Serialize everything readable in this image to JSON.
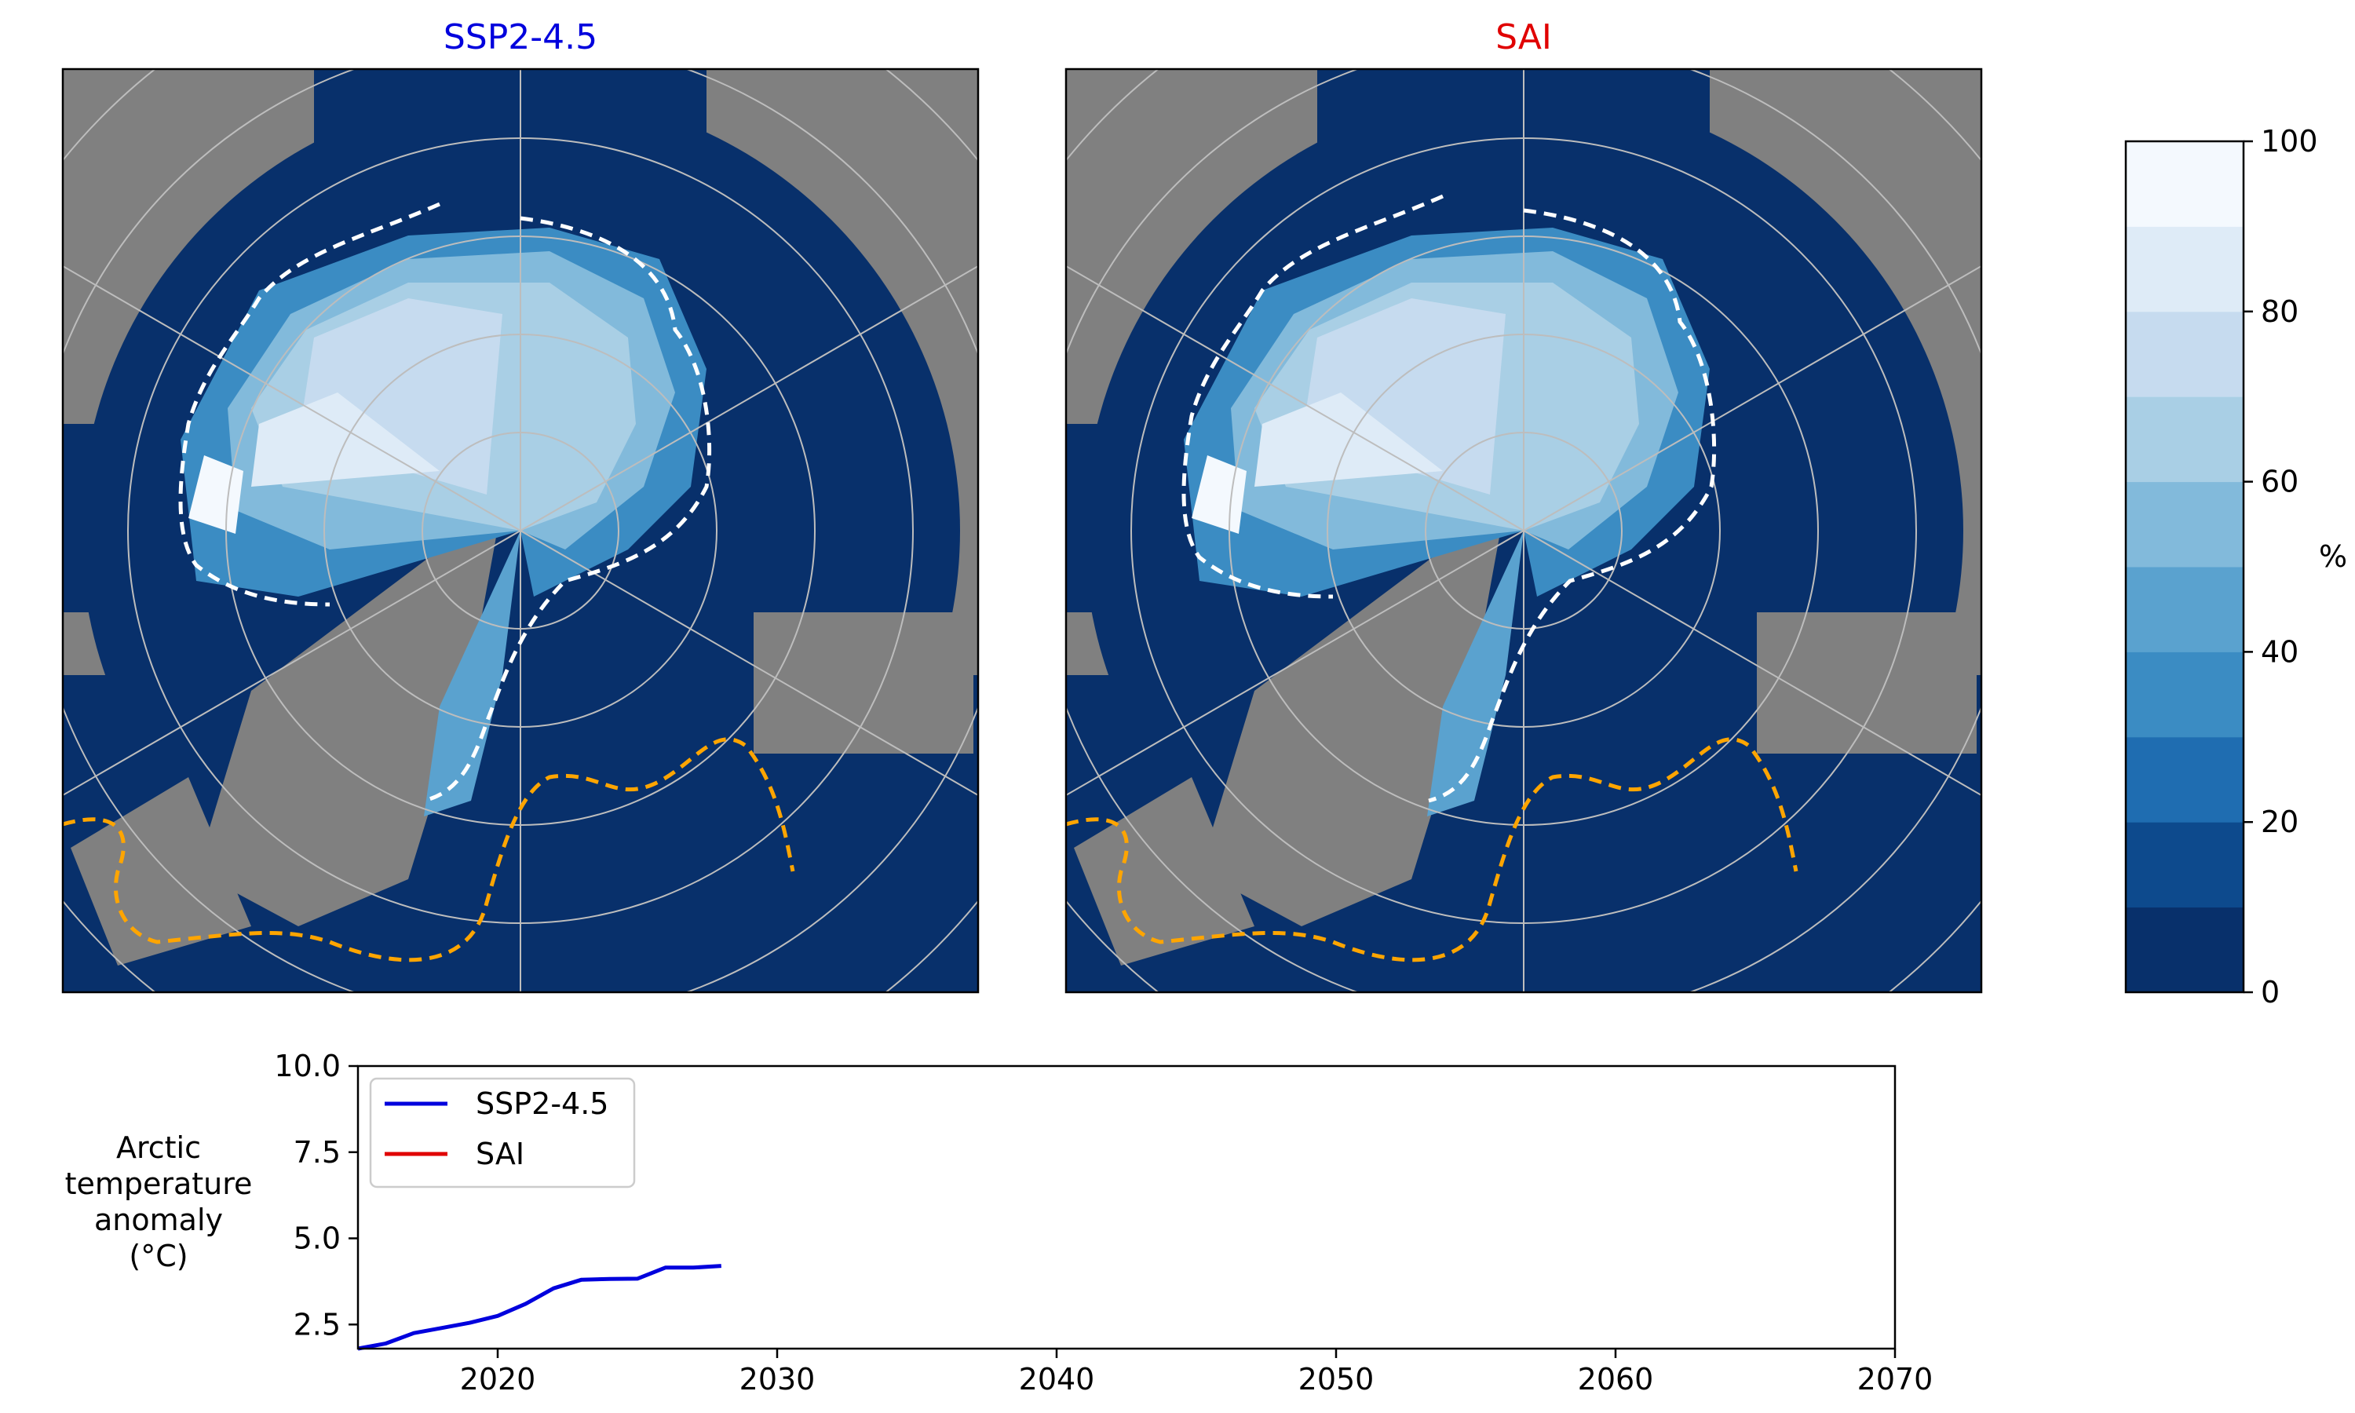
{
  "maps": [
    {
      "title": "SSP2-4.5",
      "title_color": "#0000dd",
      "color_scale": "Blues_r"
    },
    {
      "title": "SAI",
      "title_color": "#e00000",
      "color_scale": "Blues_r"
    }
  ],
  "colorbar": {
    "label": "%",
    "ticks": [
      "0",
      "20",
      "40",
      "60",
      "80",
      "100"
    ],
    "levels": [
      "#08306b",
      "#0d4a8d",
      "#1f6db1",
      "#3b8cc3",
      "#5aa2cf",
      "#82badb",
      "#a9cfe5",
      "#c6dbef",
      "#deebf7",
      "#f4f9fe"
    ]
  },
  "timeseries": {
    "ylabel_lines": [
      "Arctic",
      "temperature",
      "anomaly",
      "(°C)"
    ],
    "legend": {
      "ssp": "SSP2-4.5",
      "sai": "SAI"
    },
    "x_ticks": [
      "2020",
      "2030",
      "2040",
      "2050",
      "2060",
      "2070"
    ],
    "y_ticks": [
      "2.5",
      "5.0",
      "7.5",
      "10.0"
    ]
  },
  "chart_data": {
    "type": "line",
    "xlim": [
      2015,
      2070
    ],
    "ylim": [
      1.8,
      10.0
    ],
    "series": [
      {
        "name": "SSP2-4.5",
        "color": "#0000dd",
        "x": [
          2015,
          2016,
          2017,
          2018,
          2019,
          2020,
          2021,
          2022,
          2023,
          2024,
          2025,
          2026,
          2027,
          2028
        ],
        "y": [
          1.8,
          1.95,
          2.25,
          2.4,
          2.55,
          2.75,
          3.1,
          3.55,
          3.8,
          3.82,
          3.83,
          4.15,
          4.15,
          4.2
        ]
      },
      {
        "name": "SAI",
        "color": "#e00000",
        "x": [],
        "y": []
      }
    ]
  }
}
